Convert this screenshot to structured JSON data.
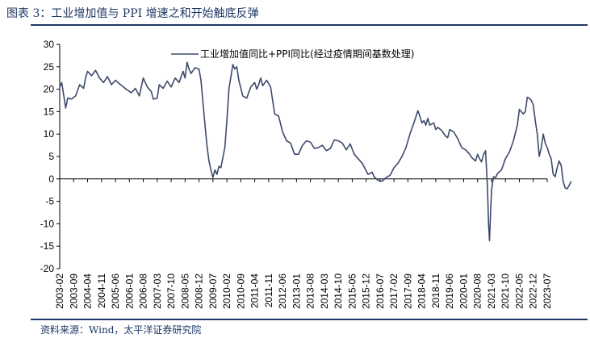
{
  "header": {
    "title": "图表 3：工业增加值与 PPI 增速之和开始触底反弹"
  },
  "footer": {
    "source": "资料来源：Wind，太平洋证券研究院"
  },
  "colors": {
    "line": "#3d4a6b",
    "accent": "#1f3864",
    "axis": "#000000"
  },
  "chart_data": {
    "type": "line",
    "title": "",
    "xlabel": "",
    "ylabel": "",
    "ylim": [
      -20,
      30
    ],
    "yticks": [
      -20,
      -15,
      -10,
      -5,
      0,
      5,
      10,
      15,
      20,
      25,
      30
    ],
    "x_start": "2003-02",
    "x_end": "2023-07",
    "xtick_labels": [
      "2003-02",
      "2003-09",
      "2004-04",
      "2004-11",
      "2005-06",
      "2006-01",
      "2006-08",
      "2007-03",
      "2007-10",
      "2008-05",
      "2008-12",
      "2009-07",
      "2010-02",
      "2010-09",
      "2011-04",
      "2011-11",
      "2012-06",
      "2013-01",
      "2013-08",
      "2014-03",
      "2014-10",
      "2015-05",
      "2015-12",
      "2016-07",
      "2017-02",
      "2017-09",
      "2018-04",
      "2018-11",
      "2019-06",
      "2020-01",
      "2020-08",
      "2021-03",
      "2021-10",
      "2022-05",
      "2022-12",
      "2023-07"
    ],
    "legend": "top",
    "series": [
      {
        "name": "工业增加值同比+PPI同比(经过疫情期间基数处理)",
        "values": [
          [
            0,
            20.5
          ],
          [
            1,
            21.5
          ],
          [
            3,
            15.8
          ],
          [
            4,
            18.0
          ],
          [
            6,
            17.8
          ],
          [
            8,
            18.5
          ],
          [
            10,
            21.0
          ],
          [
            12,
            20.2
          ],
          [
            13,
            22.5
          ],
          [
            14,
            24.0
          ],
          [
            16,
            23.0
          ],
          [
            18,
            24.2
          ],
          [
            20,
            22.5
          ],
          [
            22,
            21.5
          ],
          [
            24,
            22.8
          ],
          [
            26,
            21.0
          ],
          [
            28,
            22.0
          ],
          [
            30,
            21.2
          ],
          [
            32,
            20.5
          ],
          [
            34,
            19.8
          ],
          [
            36,
            19.2
          ],
          [
            38,
            20.2
          ],
          [
            40,
            18.5
          ],
          [
            42,
            22.5
          ],
          [
            44,
            20.5
          ],
          [
            46,
            19.5
          ],
          [
            47,
            17.8
          ],
          [
            49,
            18.0
          ],
          [
            50,
            21.0
          ],
          [
            52,
            20.2
          ],
          [
            54,
            21.8
          ],
          [
            56,
            20.5
          ],
          [
            58,
            22.5
          ],
          [
            60,
            21.5
          ],
          [
            62,
            24.0
          ],
          [
            63,
            22.5
          ],
          [
            64,
            26.0
          ],
          [
            65,
            24.5
          ],
          [
            66,
            23.5
          ],
          [
            68,
            24.8
          ],
          [
            70,
            24.5
          ],
          [
            71,
            22.0
          ],
          [
            72,
            17.0
          ],
          [
            73,
            12.0
          ],
          [
            74,
            7.5
          ],
          [
            75,
            4.0
          ],
          [
            76,
            2.0
          ],
          [
            77,
            0.3
          ],
          [
            78,
            2.0
          ],
          [
            79,
            1.0
          ],
          [
            80,
            2.8
          ],
          [
            81,
            2.5
          ],
          [
            83,
            7.0
          ],
          [
            84,
            13.0
          ],
          [
            85,
            20.0
          ],
          [
            87,
            25.5
          ],
          [
            88,
            24.5
          ],
          [
            89,
            25.0
          ],
          [
            90,
            22.0
          ],
          [
            92,
            18.5
          ],
          [
            94,
            18.0
          ],
          [
            96,
            20.5
          ],
          [
            98,
            21.5
          ],
          [
            99,
            20.0
          ],
          [
            100,
            21.0
          ],
          [
            101,
            22.5
          ],
          [
            102,
            20.8
          ],
          [
            104,
            22.0
          ],
          [
            106,
            20.5
          ],
          [
            108,
            14.5
          ],
          [
            110,
            14.0
          ],
          [
            112,
            10.5
          ],
          [
            114,
            8.5
          ],
          [
            116,
            8.0
          ],
          [
            118,
            5.5
          ],
          [
            120,
            5.5
          ],
          [
            122,
            7.5
          ],
          [
            124,
            8.5
          ],
          [
            126,
            8.2
          ],
          [
            128,
            6.8
          ],
          [
            130,
            7.0
          ],
          [
            132,
            7.5
          ],
          [
            134,
            6.3
          ],
          [
            136,
            6.8
          ],
          [
            138,
            8.7
          ],
          [
            140,
            8.5
          ],
          [
            142,
            8.0
          ],
          [
            144,
            6.5
          ],
          [
            146,
            7.8
          ],
          [
            148,
            5.5
          ],
          [
            150,
            4.5
          ],
          [
            152,
            3.5
          ],
          [
            154,
            1.8
          ],
          [
            155,
            1.0
          ],
          [
            157,
            1.5
          ],
          [
            158,
            0.5
          ],
          [
            160,
            -0.3
          ],
          [
            162,
            -0.5
          ],
          [
            164,
            0.3
          ],
          [
            166,
            0.8
          ],
          [
            168,
            2.5
          ],
          [
            170,
            3.5
          ],
          [
            172,
            5.0
          ],
          [
            174,
            7.0
          ],
          [
            176,
            10.0
          ],
          [
            178,
            12.5
          ],
          [
            180,
            15.2
          ],
          [
            181,
            14.0
          ],
          [
            182,
            12.5
          ],
          [
            183,
            13.0
          ],
          [
            184,
            12.0
          ],
          [
            185,
            13.5
          ],
          [
            186,
            12.0
          ],
          [
            188,
            12.5
          ],
          [
            189,
            11.0
          ],
          [
            190,
            11.5
          ],
          [
            192,
            10.8
          ],
          [
            194,
            9.5
          ],
          [
            195,
            9.2
          ],
          [
            196,
            11.0
          ],
          [
            198,
            10.5
          ],
          [
            200,
            9.0
          ],
          [
            202,
            7.0
          ],
          [
            204,
            6.5
          ],
          [
            206,
            5.5
          ],
          [
            207,
            4.8
          ],
          [
            209,
            4.0
          ],
          [
            210,
            5.5
          ],
          [
            211,
            4.5
          ],
          [
            212,
            3.8
          ],
          [
            213,
            5.5
          ],
          [
            214,
            6.3
          ],
          [
            215,
            -2.0
          ],
          [
            215.5,
            -10.0
          ],
          [
            216,
            -13.8
          ],
          [
            216.5,
            -8.0
          ],
          [
            217,
            -2.5
          ],
          [
            218,
            0.5
          ],
          [
            219,
            0.3
          ],
          [
            220,
            1.2
          ],
          [
            222,
            2.0
          ],
          [
            224,
            4.5
          ],
          [
            226,
            6.0
          ],
          [
            228,
            8.5
          ],
          [
            230,
            12.0
          ],
          [
            231,
            15.5
          ],
          [
            232,
            15.0
          ],
          [
            233,
            14.5
          ],
          [
            234,
            15.0
          ],
          [
            235,
            18.2
          ],
          [
            236,
            18.0
          ],
          [
            237,
            17.5
          ],
          [
            238,
            16.5
          ],
          [
            239,
            13.0
          ],
          [
            240,
            10.0
          ],
          [
            241,
            5.0
          ],
          [
            242,
            7.0
          ],
          [
            243,
            10.0
          ],
          [
            244,
            8.0
          ],
          [
            245,
            7.0
          ],
          [
            246,
            5.5
          ],
          [
            247,
            4.5
          ],
          [
            248,
            1.0
          ],
          [
            249,
            0.5
          ],
          [
            250,
            2.5
          ],
          [
            251,
            4.0
          ],
          [
            252,
            3.0
          ],
          [
            253,
            -0.5
          ],
          [
            254,
            -2.0
          ],
          [
            255,
            -2.2
          ],
          [
            256,
            -1.5
          ],
          [
            257,
            -0.5
          ]
        ]
      }
    ]
  }
}
